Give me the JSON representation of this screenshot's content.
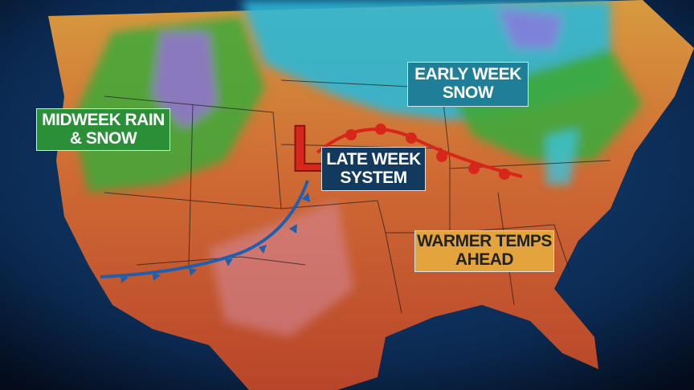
{
  "labels": {
    "early_week": [
      "EARLY WEEK",
      "SNOW"
    ],
    "midweek": [
      "MIDWEEK RAIN",
      "& SNOW"
    ],
    "late_week": [
      "LATE WEEK",
      "SYSTEM"
    ],
    "warmer": [
      "WARMER TEMPS",
      "AHEAD"
    ]
  },
  "low_pressure_symbol": "L",
  "colors": {
    "low": "#d8261b",
    "warm_front": "#d8261b",
    "cold_front": "#1f5fae",
    "warm_land": "#c9542c",
    "snow": "#3cc3dc",
    "rain": "#3da93a",
    "ocean": "#0b2a52"
  },
  "fronts": [
    "warm-front",
    "cold-front"
  ]
}
